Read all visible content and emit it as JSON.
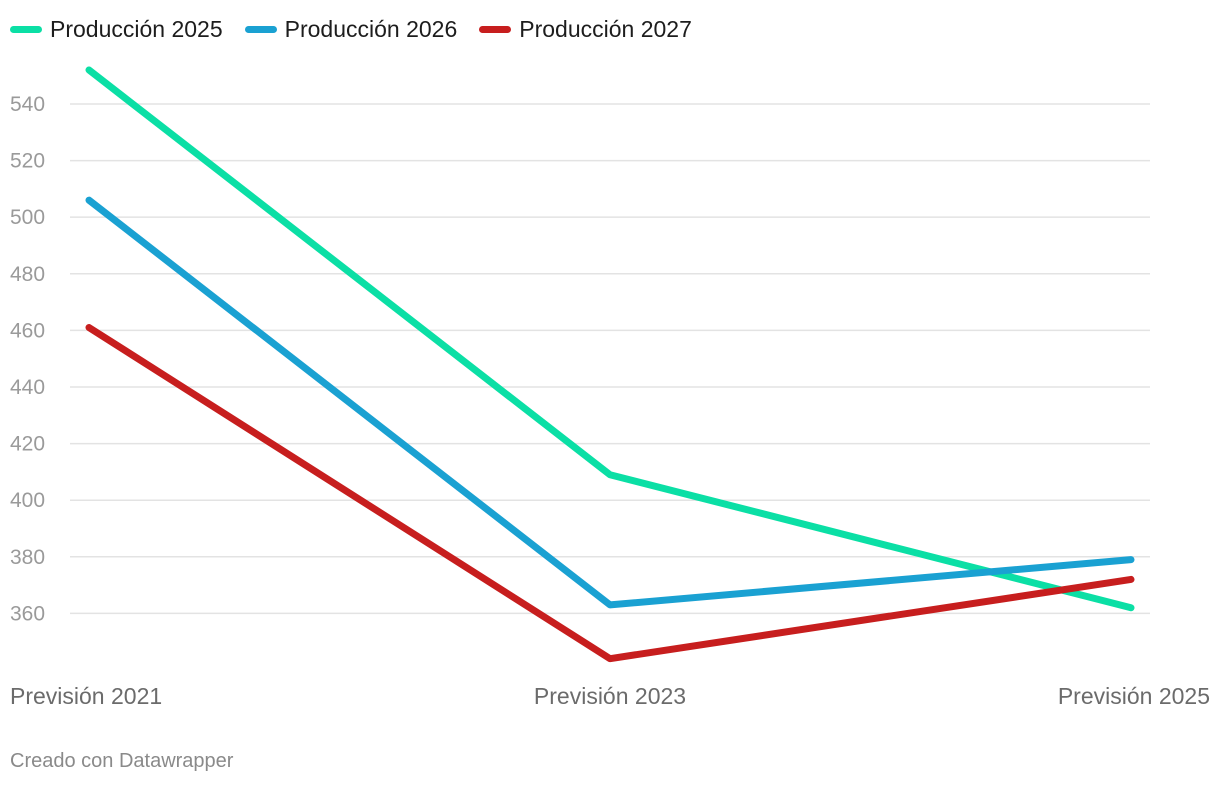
{
  "chart_data": {
    "type": "line",
    "categories": [
      "Previsión 2021",
      "Previsión 2023",
      "Previsión 2025"
    ],
    "series": [
      {
        "name": "Producción 2025",
        "color": "#0bdfa5",
        "values": [
          552,
          409,
          362
        ]
      },
      {
        "name": "Producción 2026",
        "color": "#1aa1d2",
        "values": [
          506,
          363,
          379
        ]
      },
      {
        "name": "Producción 2027",
        "color": "#c71e1e",
        "values": [
          461,
          344,
          372
        ]
      }
    ],
    "yticks": [
      360,
      380,
      400,
      420,
      440,
      460,
      480,
      500,
      520,
      540
    ],
    "ylim": [
      340,
      552
    ],
    "grid": true,
    "legend_position": "top-left"
  },
  "footer": {
    "credit": "Creado con Datawrapper"
  }
}
